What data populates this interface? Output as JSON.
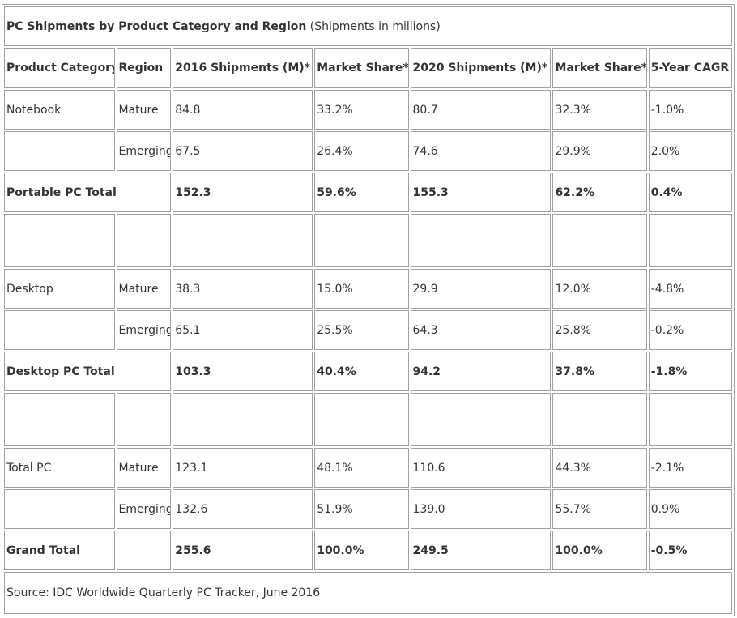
{
  "title": {
    "main": "PC Shipments by Product Category and Region",
    "sub": "(Shipments in millions)"
  },
  "headers": [
    "Product Category",
    "Region",
    "2016 Shipments (M)*",
    "Market Share*",
    "2020 Shipments (M)*",
    "Market Share*",
    "5-Year CAGR"
  ],
  "rows": {
    "notebook_mature": [
      "Notebook",
      "Mature",
      "84.8",
      "33.2%",
      "80.7",
      "32.3%",
      "-1.0%"
    ],
    "notebook_emerging": [
      "",
      "Emerging",
      "67.5",
      "26.4%",
      "74.6",
      "29.9%",
      "2.0%"
    ],
    "portable_total": [
      "Portable PC Total",
      "152.3",
      "59.6%",
      "155.3",
      "62.2%",
      "0.4%"
    ],
    "desktop_mature": [
      "Desktop",
      "Mature",
      "38.3",
      "15.0%",
      "29.9",
      "12.0%",
      "-4.8%"
    ],
    "desktop_emerging": [
      "",
      "Emerging",
      "65.1",
      "25.5%",
      "64.3",
      "25.8%",
      "-0.2%"
    ],
    "desktop_total": [
      "Desktop PC Total",
      "103.3",
      "40.4%",
      "94.2",
      "37.8%",
      "-1.8%"
    ],
    "totalpc_mature": [
      "Total PC",
      "Mature",
      "123.1",
      "48.1%",
      "110.6",
      "44.3%",
      "-2.1%"
    ],
    "totalpc_emerging": [
      "",
      "Emerging",
      "132.6",
      "51.9%",
      "139.0",
      "55.7%",
      "0.9%"
    ],
    "grand_total": [
      "Grand Total",
      "",
      "255.6",
      "100.0%",
      "249.5",
      "100.0%",
      "-0.5%"
    ]
  },
  "source": "Source: IDC Worldwide Quarterly PC Tracker, June 2016"
}
